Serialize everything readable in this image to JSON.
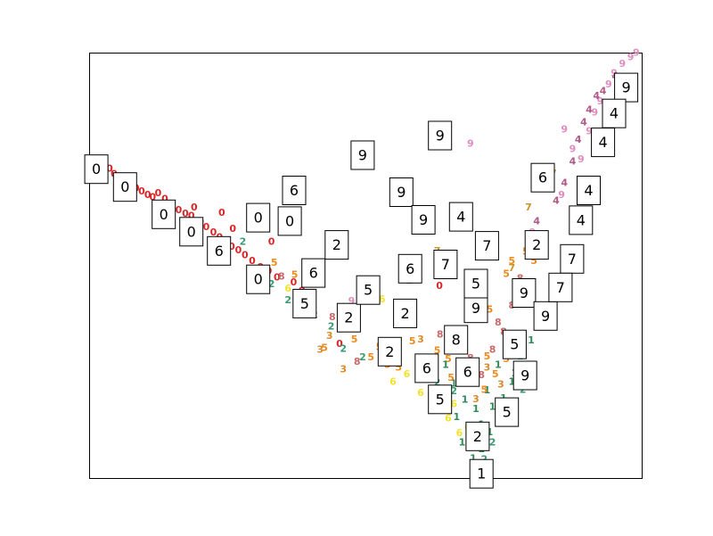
{
  "chart_data": {
    "type": "scatter",
    "title": "",
    "xlabel": "",
    "ylabel": "",
    "xlim": [
      0,
      100
    ],
    "ylim": [
      0,
      100
    ],
    "axes_visible": false,
    "grid": false,
    "colors": {
      "0": "#d62728",
      "1": "#2e8b57",
      "2": "#3a9c74",
      "3": "#d98a2b",
      "4": "#b05a8a",
      "5": "#ef8a1a",
      "6": "#f2e32a",
      "7": "#c9942a",
      "8": "#c96a6a",
      "9": "#e08cc0"
    },
    "points": [
      {
        "d": "0",
        "x": 3.7,
        "y": 72.7
      },
      {
        "d": "0",
        "x": 4.5,
        "y": 71.5
      },
      {
        "d": "0",
        "x": 5.5,
        "y": 70.4
      },
      {
        "d": "0",
        "x": 6.5,
        "y": 69.6
      },
      {
        "d": "0",
        "x": 7.3,
        "y": 68.8
      },
      {
        "d": "0",
        "x": 8.5,
        "y": 68.1
      },
      {
        "d": "0",
        "x": 9.5,
        "y": 67.4
      },
      {
        "d": "0",
        "x": 10.6,
        "y": 66.6
      },
      {
        "d": "0",
        "x": 11.5,
        "y": 66.0
      },
      {
        "d": "0",
        "x": 12.5,
        "y": 67.0
      },
      {
        "d": "0",
        "x": 13.7,
        "y": 65.6
      },
      {
        "d": "0",
        "x": 15.0,
        "y": 64.5
      },
      {
        "d": "0",
        "x": 16.2,
        "y": 63.0
      },
      {
        "d": "0",
        "x": 17.4,
        "y": 62.2
      },
      {
        "d": "0",
        "x": 18.5,
        "y": 61.6
      },
      {
        "d": "0",
        "x": 19.0,
        "y": 63.6
      },
      {
        "d": "0",
        "x": 20.2,
        "y": 60.2
      },
      {
        "d": "0",
        "x": 21.2,
        "y": 59.0
      },
      {
        "d": "0",
        "x": 22.5,
        "y": 57.8
      },
      {
        "d": "0",
        "x": 23.6,
        "y": 56.6
      },
      {
        "d": "0",
        "x": 24.7,
        "y": 55.4
      },
      {
        "d": "0",
        "x": 25.8,
        "y": 54.4
      },
      {
        "d": "0",
        "x": 27.0,
        "y": 53.6
      },
      {
        "d": "0",
        "x": 28.2,
        "y": 52.4
      },
      {
        "d": "0",
        "x": 29.5,
        "y": 51.0
      },
      {
        "d": "0",
        "x": 31.0,
        "y": 49.6
      },
      {
        "d": "0",
        "x": 32.5,
        "y": 48.6
      },
      {
        "d": "0",
        "x": 34.0,
        "y": 47.2
      },
      {
        "d": "0",
        "x": 24.0,
        "y": 62.4
      },
      {
        "d": "0",
        "x": 26.0,
        "y": 58.6
      },
      {
        "d": "0",
        "x": 30.0,
        "y": 60.4
      },
      {
        "d": "0",
        "x": 33.0,
        "y": 55.6
      },
      {
        "d": "0",
        "x": 36.5,
        "y": 60.4
      },
      {
        "d": "0",
        "x": 37.0,
        "y": 46.0
      },
      {
        "d": "0",
        "x": 38.5,
        "y": 44.0
      },
      {
        "d": "0",
        "x": 45.3,
        "y": 31.6
      },
      {
        "d": "0",
        "x": 63.4,
        "y": 45.2
      },
      {
        "d": "2",
        "x": 27.8,
        "y": 55.6
      },
      {
        "d": "2",
        "x": 30.5,
        "y": 48.4
      },
      {
        "d": "2",
        "x": 33.0,
        "y": 45.6
      },
      {
        "d": "2",
        "x": 36.0,
        "y": 41.8
      },
      {
        "d": "2",
        "x": 38.5,
        "y": 41.0
      },
      {
        "d": "2",
        "x": 40.8,
        "y": 38.4
      },
      {
        "d": "2",
        "x": 43.8,
        "y": 35.6
      },
      {
        "d": "2",
        "x": 46.3,
        "y": 36.6
      },
      {
        "d": "2",
        "x": 46.0,
        "y": 30.4
      },
      {
        "d": "2",
        "x": 49.5,
        "y": 28.4
      },
      {
        "d": "2",
        "x": 58.0,
        "y": 46.4
      },
      {
        "d": "2",
        "x": 65.4,
        "y": 34.8
      },
      {
        "d": "3",
        "x": 41.8,
        "y": 30.2
      },
      {
        "d": "3",
        "x": 43.5,
        "y": 33.4
      },
      {
        "d": "3",
        "x": 46.0,
        "y": 25.6
      },
      {
        "d": "3",
        "x": 60.0,
        "y": 32.6
      },
      {
        "d": "5",
        "x": 33.5,
        "y": 50.6
      },
      {
        "d": "5",
        "x": 37.2,
        "y": 47.8
      },
      {
        "d": "5",
        "x": 42.6,
        "y": 30.6
      },
      {
        "d": "5",
        "x": 48.0,
        "y": 32.6
      },
      {
        "d": "5",
        "x": 51.0,
        "y": 28.4
      },
      {
        "d": "5",
        "x": 52.5,
        "y": 30.8
      },
      {
        "d": "5",
        "x": 54.0,
        "y": 26.6
      },
      {
        "d": "5",
        "x": 56.0,
        "y": 26.0
      },
      {
        "d": "5",
        "x": 58.5,
        "y": 32.2
      },
      {
        "d": "5",
        "x": 60.5,
        "y": 23.4
      },
      {
        "d": "5",
        "x": 63.0,
        "y": 30.0
      },
      {
        "d": "5",
        "x": 65.0,
        "y": 28.0
      },
      {
        "d": "5",
        "x": 67.0,
        "y": 32.4
      },
      {
        "d": "5",
        "x": 70.5,
        "y": 42.6
      },
      {
        "d": "5",
        "x": 72.5,
        "y": 39.6
      },
      {
        "d": "5",
        "x": 75.5,
        "y": 48.0
      },
      {
        "d": "5",
        "x": 76.5,
        "y": 51.0
      },
      {
        "d": "5",
        "x": 79.0,
        "y": 53.2
      },
      {
        "d": "5",
        "x": 80.5,
        "y": 51.0
      },
      {
        "d": "5",
        "x": 81.5,
        "y": 55.4
      },
      {
        "d": "6",
        "x": 36.0,
        "y": 44.6
      },
      {
        "d": "6",
        "x": 53.0,
        "y": 42.0
      },
      {
        "d": "6",
        "x": 55.0,
        "y": 22.6
      },
      {
        "d": "6",
        "x": 57.5,
        "y": 24.4
      },
      {
        "d": "6",
        "x": 60.0,
        "y": 20.0
      },
      {
        "d": "6",
        "x": 61.5,
        "y": 23.4
      },
      {
        "d": "6",
        "x": 67.5,
        "y": 30.6
      },
      {
        "d": "7",
        "x": 63.0,
        "y": 53.4
      },
      {
        "d": "7",
        "x": 79.5,
        "y": 63.6
      },
      {
        "d": "7",
        "x": 84.0,
        "y": 71.6
      },
      {
        "d": "7",
        "x": 76.5,
        "y": 49.4
      },
      {
        "d": "8",
        "x": 34.8,
        "y": 47.4
      },
      {
        "d": "8",
        "x": 44.0,
        "y": 37.8
      },
      {
        "d": "8",
        "x": 48.5,
        "y": 27.4
      },
      {
        "d": "8",
        "x": 63.5,
        "y": 33.8
      },
      {
        "d": "8",
        "x": 74.0,
        "y": 36.6
      },
      {
        "d": "8",
        "x": 76.5,
        "y": 40.6
      },
      {
        "d": "8",
        "x": 78.0,
        "y": 47.0
      },
      {
        "d": "9",
        "x": 24.0,
        "y": 50.8
      },
      {
        "d": "9",
        "x": 47.5,
        "y": 41.6
      },
      {
        "d": "9",
        "x": 69.0,
        "y": 78.6
      },
      {
        "d": "9",
        "x": 80.2,
        "y": 57.8
      },
      {
        "d": "9",
        "x": 86.0,
        "y": 82.0
      },
      {
        "d": "9",
        "x": 85.5,
        "y": 66.6
      },
      {
        "d": "9",
        "x": 87.5,
        "y": 77.4
      },
      {
        "d": "9",
        "x": 89.0,
        "y": 75.0
      },
      {
        "d": "9",
        "x": 90.5,
        "y": 81.6
      },
      {
        "d": "9",
        "x": 91.5,
        "y": 86.0
      },
      {
        "d": "9",
        "x": 92.5,
        "y": 88.6
      },
      {
        "d": "9",
        "x": 94.0,
        "y": 92.6
      },
      {
        "d": "9",
        "x": 95.0,
        "y": 95.2
      },
      {
        "d": "9",
        "x": 96.5,
        "y": 97.4
      },
      {
        "d": "9",
        "x": 98.0,
        "y": 99.0
      },
      {
        "d": "9",
        "x": 99.0,
        "y": 100.0
      },
      {
        "d": "4",
        "x": 81.0,
        "y": 60.4
      },
      {
        "d": "4",
        "x": 84.5,
        "y": 65.2
      },
      {
        "d": "4",
        "x": 86.0,
        "y": 69.4
      },
      {
        "d": "4",
        "x": 87.5,
        "y": 74.4
      },
      {
        "d": "4",
        "x": 88.5,
        "y": 79.6
      },
      {
        "d": "4",
        "x": 89.5,
        "y": 83.6
      },
      {
        "d": "4",
        "x": 90.5,
        "y": 86.6
      },
      {
        "d": "4",
        "x": 91.8,
        "y": 89.8
      },
      {
        "d": "4",
        "x": 93.0,
        "y": 91.0
      },
      {
        "d": "4",
        "x": 95.2,
        "y": 94.4
      },
      {
        "d": "1",
        "x": 67.5,
        "y": 8.4
      },
      {
        "d": "1",
        "x": 69.5,
        "y": 4.6
      },
      {
        "d": "1",
        "x": 71.0,
        "y": 6.8
      },
      {
        "d": "1",
        "x": 72.5,
        "y": 10.8
      },
      {
        "d": "1",
        "x": 74.0,
        "y": 14.8
      },
      {
        "d": "1",
        "x": 75.0,
        "y": 18.8
      },
      {
        "d": "1",
        "x": 76.5,
        "y": 22.6
      },
      {
        "d": "1",
        "x": 66.5,
        "y": 14.4
      },
      {
        "d": "1",
        "x": 68.0,
        "y": 18.4
      },
      {
        "d": "1",
        "x": 70.0,
        "y": 16.2
      },
      {
        "d": "1",
        "x": 72.0,
        "y": 20.6
      },
      {
        "d": "1",
        "x": 74.0,
        "y": 26.6
      },
      {
        "d": "1",
        "x": 78.0,
        "y": 28.6
      },
      {
        "d": "1",
        "x": 80.0,
        "y": 32.4
      },
      {
        "d": "1",
        "x": 82.0,
        "y": 36.6
      },
      {
        "d": "1",
        "x": 70.0,
        "y": 26.6
      },
      {
        "d": "1",
        "x": 66.0,
        "y": 22.2
      },
      {
        "d": "1",
        "x": 64.5,
        "y": 26.6
      },
      {
        "d": "1",
        "x": 68.0,
        "y": 30.4
      },
      {
        "d": "1",
        "x": 76.0,
        "y": 32.8
      },
      {
        "d": "1",
        "x": 70.5,
        "y": 2.0
      },
      {
        "d": "1",
        "x": 71.0,
        "y": 12.6
      },
      {
        "d": "1",
        "x": 73.0,
        "y": 16.8
      },
      {
        "d": "1",
        "x": 77.0,
        "y": 24.6
      },
      {
        "d": "6",
        "x": 68.5,
        "y": 12.0
      },
      {
        "d": "6",
        "x": 66.0,
        "y": 17.4
      },
      {
        "d": "6",
        "x": 64.0,
        "y": 20.2
      },
      {
        "d": "6",
        "x": 69.0,
        "y": 8.0
      },
      {
        "d": "6",
        "x": 67.0,
        "y": 10.6
      },
      {
        "d": "6",
        "x": 65.0,
        "y": 14.0
      },
      {
        "d": "6",
        "x": 70.0,
        "y": 11.0
      },
      {
        "d": "6",
        "x": 62.0,
        "y": 18.0
      },
      {
        "d": "5",
        "x": 71.5,
        "y": 20.8
      },
      {
        "d": "5",
        "x": 73.5,
        "y": 24.4
      },
      {
        "d": "5",
        "x": 75.5,
        "y": 28.0
      },
      {
        "d": "5",
        "x": 69.0,
        "y": 22.4
      },
      {
        "d": "5",
        "x": 67.5,
        "y": 26.4
      },
      {
        "d": "5",
        "x": 72.0,
        "y": 28.6
      },
      {
        "d": "5",
        "x": 77.5,
        "y": 30.0
      },
      {
        "d": "5",
        "x": 65.5,
        "y": 23.6
      },
      {
        "d": "8",
        "x": 71.0,
        "y": 24.2
      },
      {
        "d": "8",
        "x": 73.0,
        "y": 30.2
      },
      {
        "d": "8",
        "x": 75.0,
        "y": 34.4
      },
      {
        "d": "8",
        "x": 69.0,
        "y": 28.2
      },
      {
        "d": "3",
        "x": 72.0,
        "y": 26.0
      },
      {
        "d": "3",
        "x": 74.5,
        "y": 22.0
      },
      {
        "d": "3",
        "x": 70.0,
        "y": 18.6
      },
      {
        "d": "3",
        "x": 68.0,
        "y": 24.0
      },
      {
        "d": "2",
        "x": 73.0,
        "y": 8.4
      },
      {
        "d": "2",
        "x": 74.5,
        "y": 12.8
      },
      {
        "d": "2",
        "x": 76.0,
        "y": 16.6
      },
      {
        "d": "2",
        "x": 71.5,
        "y": 4.4
      },
      {
        "d": "2",
        "x": 78.5,
        "y": 20.8
      },
      {
        "d": "2",
        "x": 80.0,
        "y": 24.6
      },
      {
        "d": "2",
        "x": 66.0,
        "y": 20.4
      },
      {
        "d": "2",
        "x": 63.0,
        "y": 22.4
      }
    ],
    "boxed_labels": [
      {
        "text": "0",
        "x": 1.3,
        "y": 72.6
      },
      {
        "text": "0",
        "x": 6.5,
        "y": 68.4
      },
      {
        "text": "0",
        "x": 13.5,
        "y": 62.0
      },
      {
        "text": "0",
        "x": 18.5,
        "y": 57.9
      },
      {
        "text": "0",
        "x": 30.6,
        "y": 61.2
      },
      {
        "text": "0",
        "x": 36.3,
        "y": 60.4
      },
      {
        "text": "0",
        "x": 30.6,
        "y": 46.7
      },
      {
        "text": "6",
        "x": 23.5,
        "y": 53.4
      },
      {
        "text": "6",
        "x": 37.1,
        "y": 67.6
      },
      {
        "text": "6",
        "x": 40.6,
        "y": 48.2
      },
      {
        "text": "6",
        "x": 58.1,
        "y": 49.2
      },
      {
        "text": "6",
        "x": 61.1,
        "y": 25.8
      },
      {
        "text": "6",
        "x": 68.5,
        "y": 24.9
      },
      {
        "text": "6",
        "x": 82.1,
        "y": 70.6
      },
      {
        "text": "9",
        "x": 49.5,
        "y": 75.9
      },
      {
        "text": "9",
        "x": 63.5,
        "y": 80.5
      },
      {
        "text": "9",
        "x": 56.5,
        "y": 67.2
      },
      {
        "text": "9",
        "x": 60.5,
        "y": 60.7
      },
      {
        "text": "9",
        "x": 70.0,
        "y": 39.9
      },
      {
        "text": "9",
        "x": 78.7,
        "y": 43.5
      },
      {
        "text": "9",
        "x": 82.6,
        "y": 38.1
      },
      {
        "text": "9",
        "x": 78.9,
        "y": 24.1
      },
      {
        "text": "9",
        "x": 97.2,
        "y": 91.8
      },
      {
        "text": "4",
        "x": 67.3,
        "y": 61.4
      },
      {
        "text": "4",
        "x": 95.0,
        "y": 85.7
      },
      {
        "text": "4",
        "x": 93.0,
        "y": 78.9
      },
      {
        "text": "4",
        "x": 90.4,
        "y": 67.6
      },
      {
        "text": "4",
        "x": 89.0,
        "y": 60.6
      },
      {
        "text": "7",
        "x": 72.0,
        "y": 54.6
      },
      {
        "text": "7",
        "x": 64.5,
        "y": 50.2
      },
      {
        "text": "7",
        "x": 87.4,
        "y": 51.5
      },
      {
        "text": "7",
        "x": 85.3,
        "y": 44.8
      },
      {
        "text": "2",
        "x": 44.8,
        "y": 54.8
      },
      {
        "text": "2",
        "x": 47.0,
        "y": 37.7
      },
      {
        "text": "2",
        "x": 57.2,
        "y": 38.7
      },
      {
        "text": "2",
        "x": 54.4,
        "y": 29.7
      },
      {
        "text": "2",
        "x": 81.0,
        "y": 54.8
      },
      {
        "text": "2",
        "x": 70.3,
        "y": 9.8
      },
      {
        "text": "5",
        "x": 50.5,
        "y": 44.2
      },
      {
        "text": "5",
        "x": 39.0,
        "y": 41.0
      },
      {
        "text": "5",
        "x": 70.0,
        "y": 45.7
      },
      {
        "text": "5",
        "x": 77.0,
        "y": 31.4
      },
      {
        "text": "5",
        "x": 63.5,
        "y": 18.5
      },
      {
        "text": "5",
        "x": 75.6,
        "y": 15.5
      },
      {
        "text": "8",
        "x": 66.4,
        "y": 32.5
      },
      {
        "text": "1",
        "x": 71.0,
        "y": 1.0
      }
    ]
  }
}
